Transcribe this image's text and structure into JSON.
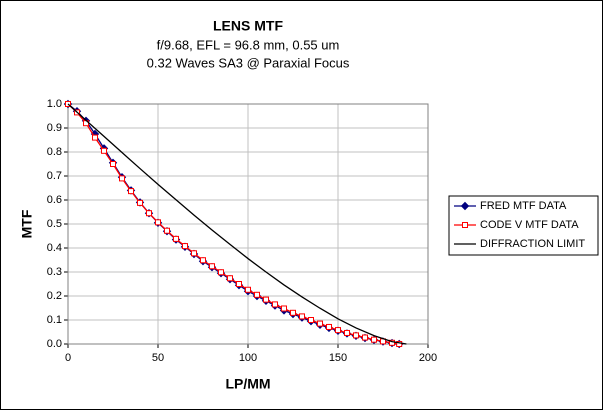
{
  "chart_data": {
    "type": "line",
    "title": "LENS MTF",
    "subtitle": [
      "f/9.68, EFL = 96.8 mm, 0.55 um",
      "0.32 Waves SA3 @ Paraxial Focus"
    ],
    "x_label": "LP/MM",
    "y_label": "MTF",
    "xlim": [
      0,
      200
    ],
    "ylim": [
      0,
      1
    ],
    "xticks": [
      0,
      50,
      100,
      150,
      200
    ],
    "yticks": [
      {
        "value": 0,
        "label": "0.0"
      },
      0.1,
      0.2,
      0.3,
      0.4,
      0.5,
      0.6,
      0.7,
      0.8,
      0.9,
      {
        "value": 1,
        "label": "1.0"
      }
    ],
    "grid": true,
    "legend": "right",
    "series": [
      {
        "name": "FRED MTF DATA",
        "color": "#000080",
        "marker": "diamond",
        "x": [
          0,
          5,
          10,
          15,
          20,
          25,
          30,
          35,
          40,
          45,
          50,
          55,
          60,
          65,
          70,
          75,
          80,
          85,
          90,
          95,
          100,
          105,
          110,
          115,
          120,
          125,
          130,
          135,
          140,
          145,
          150,
          155,
          160,
          165,
          170,
          175,
          180,
          184
        ],
        "values": [
          1.0,
          0.97,
          0.93,
          0.875,
          0.815,
          0.755,
          0.695,
          0.64,
          0.59,
          0.545,
          0.505,
          0.47,
          0.435,
          0.405,
          0.375,
          0.345,
          0.32,
          0.295,
          0.27,
          0.245,
          0.22,
          0.2,
          0.18,
          0.16,
          0.14,
          0.125,
          0.11,
          0.095,
          0.08,
          0.067,
          0.055,
          0.044,
          0.034,
          0.025,
          0.017,
          0.01,
          0.004,
          0
        ]
      },
      {
        "name": "CODE V MTF DATA",
        "color": "#ff0000",
        "marker": "square",
        "x": [
          0,
          5,
          10,
          15,
          20,
          25,
          30,
          35,
          40,
          45,
          50,
          55,
          60,
          65,
          70,
          75,
          80,
          85,
          90,
          95,
          100,
          105,
          110,
          115,
          120,
          125,
          130,
          135,
          140,
          145,
          150,
          155,
          160,
          165,
          170,
          175,
          180,
          184
        ],
        "values": [
          1.0,
          0.965,
          0.92,
          0.86,
          0.805,
          0.75,
          0.69,
          0.637,
          0.588,
          0.545,
          0.507,
          0.472,
          0.438,
          0.408,
          0.378,
          0.349,
          0.324,
          0.299,
          0.274,
          0.25,
          0.226,
          0.205,
          0.185,
          0.165,
          0.148,
          0.13,
          0.115,
          0.1,
          0.085,
          0.071,
          0.058,
          0.046,
          0.036,
          0.027,
          0.018,
          0.011,
          0.005,
          0
        ]
      },
      {
        "name": "DIFFRACTION LIMIT",
        "color": "#000000",
        "marker": "none",
        "x": [
          0,
          10,
          20,
          30,
          40,
          50,
          60,
          70,
          80,
          90,
          100,
          110,
          120,
          130,
          140,
          150,
          160,
          170,
          180,
          188
        ],
        "values": [
          1,
          0.932,
          0.865,
          0.798,
          0.731,
          0.665,
          0.601,
          0.537,
          0.475,
          0.415,
          0.356,
          0.3,
          0.246,
          0.196,
          0.149,
          0.105,
          0.067,
          0.035,
          0.01,
          0
        ]
      }
    ]
  }
}
